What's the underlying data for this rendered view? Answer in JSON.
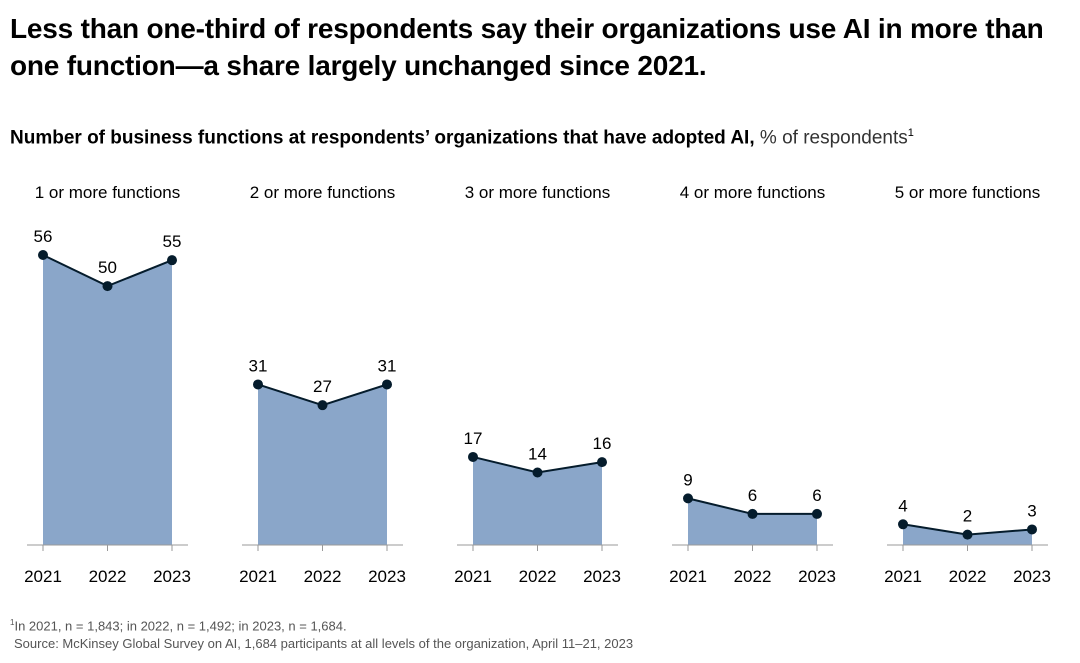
{
  "headline": "Less than one-third of respondents say their organizations use AI in more than one function—a share largely unchanged since 2021.",
  "subtitle": {
    "bold": "Number of business functions at respondents’ organizations that have adopted AI,",
    "unit": "% of respondents",
    "footnote_mark": "1"
  },
  "chart_data": {
    "type": "area",
    "categories": [
      "2021",
      "2022",
      "2023"
    ],
    "ylim": [
      0,
      56
    ],
    "grid": false,
    "legend": "none",
    "fill_color": "#8aa6c9",
    "line_color": "#051c2c",
    "axis_color": "#999999",
    "panels": [
      {
        "title": "1 or more functions",
        "values": [
          56,
          50,
          55
        ]
      },
      {
        "title": "2 or more functions",
        "values": [
          31,
          27,
          31
        ]
      },
      {
        "title": "3 or more functions",
        "values": [
          17,
          14,
          16
        ]
      },
      {
        "title": "4 or more functions",
        "values": [
          9,
          6,
          6
        ]
      },
      {
        "title": "5 or more functions",
        "values": [
          4,
          2,
          3
        ]
      }
    ]
  },
  "notes": {
    "footnote_mark": "1",
    "footnote": "In 2021, n = 1,843; in 2022, n = 1,492; in 2023, n = 1,684.",
    "source": "Source: McKinsey Global Survey on AI, 1,684 participants at all levels of the organization, April 11–21, 2023"
  }
}
